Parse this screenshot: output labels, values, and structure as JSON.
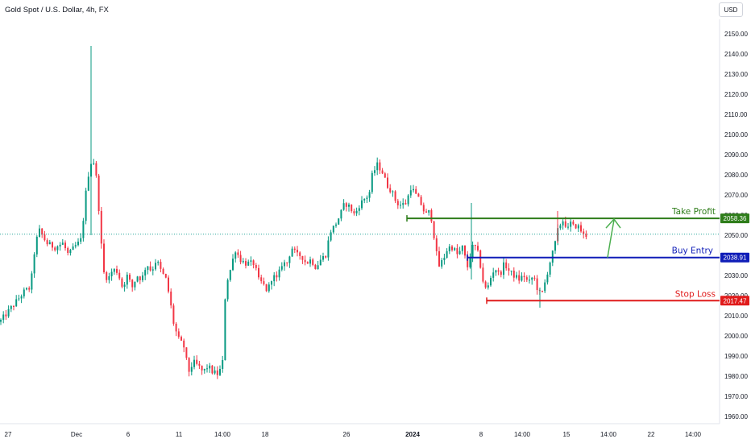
{
  "header": {
    "title": "Gold Spot / U.S. Dollar, 4h, FX",
    "currency": "USD"
  },
  "colors": {
    "up": "#089981",
    "down": "#f23645",
    "take_profit": "#2e7d1a",
    "buy_entry": "#0f1db8",
    "stop_loss": "#e01b1b",
    "arrow": "#4caf50",
    "current_price_line": "#26a69a"
  },
  "chart_data": {
    "type": "candlestick",
    "title": "Gold Spot / U.S. Dollar, 4h, FX",
    "y_ticks": [
      2150,
      2140,
      2130,
      2120,
      2110,
      2100,
      2090,
      2080,
      2070,
      2060,
      2050,
      2040,
      2030,
      2020,
      2010,
      2000,
      1990,
      1980,
      1970,
      1960
    ],
    "y_tick_labels": [
      "2150.00",
      "2140.00",
      "2130.00",
      "2120.00",
      "2110.00",
      "2100.00",
      "2090.00",
      "2080.00",
      "2070.00",
      "2060.00",
      "2050.00",
      "2040.00",
      "2030.00",
      "2020.00",
      "2010.00",
      "2000.00",
      "1990.00",
      "1980.00",
      "1970.00",
      "1960.00"
    ],
    "ylim": [
      1957,
      2155
    ],
    "x_labels": [
      "27",
      "Dec",
      "6",
      "11",
      "14:00",
      "18",
      "26",
      "2024",
      "8",
      "14:00",
      "15",
      "14:00",
      "22",
      "14:00"
    ],
    "price_path": [
      [
        0,
        2007
      ],
      [
        10,
        2012
      ],
      [
        20,
        2017
      ],
      [
        30,
        2022
      ],
      [
        38,
        2024
      ],
      [
        42,
        2040
      ],
      [
        48,
        2053
      ],
      [
        58,
        2046
      ],
      [
        68,
        2044
      ],
      [
        78,
        2046
      ],
      [
        85,
        2040
      ],
      [
        92,
        2044
      ],
      [
        100,
        2047
      ],
      [
        104,
        2060
      ],
      [
        108,
        2077
      ],
      [
        114,
        2088
      ],
      [
        118,
        2085
      ],
      [
        122,
        2067
      ],
      [
        128,
        2032
      ],
      [
        134,
        2028
      ],
      [
        140,
        2033
      ],
      [
        146,
        2032
      ],
      [
        152,
        2024
      ],
      [
        158,
        2030
      ],
      [
        164,
        2024
      ],
      [
        170,
        2030
      ],
      [
        176,
        2028
      ],
      [
        182,
        2036
      ],
      [
        188,
        2032
      ],
      [
        194,
        2038
      ],
      [
        200,
        2032
      ],
      [
        206,
        2028
      ],
      [
        210,
        2020
      ],
      [
        216,
        2005
      ],
      [
        222,
        1998
      ],
      [
        228,
        1995
      ],
      [
        234,
        1982
      ],
      [
        240,
        1987
      ],
      [
        246,
        1985
      ],
      [
        252,
        1982
      ],
      [
        258,
        1985
      ],
      [
        264,
        1982
      ],
      [
        270,
        1981
      ],
      [
        276,
        1985
      ],
      [
        280,
        2025
      ],
      [
        286,
        2033
      ],
      [
        292,
        2043
      ],
      [
        298,
        2038
      ],
      [
        304,
        2036
      ],
      [
        310,
        2036
      ],
      [
        316,
        2036
      ],
      [
        320,
        2028
      ],
      [
        326,
        2026
      ],
      [
        332,
        2022
      ],
      [
        338,
        2030
      ],
      [
        344,
        2028
      ],
      [
        350,
        2036
      ],
      [
        356,
        2036
      ],
      [
        362,
        2044
      ],
      [
        368,
        2040
      ],
      [
        374,
        2040
      ],
      [
        380,
        2036
      ],
      [
        386,
        2038
      ],
      [
        392,
        2034
      ],
      [
        398,
        2038
      ],
      [
        404,
        2040
      ],
      [
        410,
        2052
      ],
      [
        416,
        2055
      ],
      [
        422,
        2060
      ],
      [
        428,
        2066
      ],
      [
        434,
        2064
      ],
      [
        440,
        2060
      ],
      [
        446,
        2065
      ],
      [
        452,
        2068
      ],
      [
        458,
        2070
      ],
      [
        462,
        2080
      ],
      [
        468,
        2085
      ],
      [
        474,
        2082
      ],
      [
        480,
        2075
      ],
      [
        486,
        2072
      ],
      [
        492,
        2066
      ],
      [
        498,
        2065
      ],
      [
        504,
        2066
      ],
      [
        510,
        2074
      ],
      [
        516,
        2070
      ],
      [
        522,
        2066
      ],
      [
        528,
        2060
      ],
      [
        534,
        2062
      ],
      [
        540,
        2046
      ],
      [
        544,
        2034
      ],
      [
        550,
        2038
      ],
      [
        556,
        2044
      ],
      [
        562,
        2044
      ],
      [
        568,
        2040
      ],
      [
        574,
        2044
      ],
      [
        580,
        2034
      ],
      [
        586,
        2044
      ],
      [
        590,
        2044
      ],
      [
        594,
        2040
      ],
      [
        600,
        2026
      ],
      [
        604,
        2022
      ],
      [
        608,
        2028
      ],
      [
        614,
        2034
      ],
      [
        620,
        2030
      ],
      [
        626,
        2036
      ],
      [
        632,
        2032
      ],
      [
        638,
        2030
      ],
      [
        644,
        2028
      ],
      [
        650,
        2030
      ],
      [
        656,
        2026
      ],
      [
        662,
        2030
      ],
      [
        668,
        2022
      ],
      [
        672,
        2020
      ],
      [
        676,
        2026
      ],
      [
        682,
        2036
      ],
      [
        688,
        2044
      ],
      [
        692,
        2052
      ],
      [
        696,
        2056
      ],
      [
        700,
        2058
      ],
      [
        704,
        2052
      ],
      [
        708,
        2056
      ],
      [
        712,
        2054
      ],
      [
        716,
        2055
      ],
      [
        720,
        2053
      ],
      [
        724,
        2050
      ],
      [
        728,
        2050
      ]
    ],
    "current_price": 2050.5,
    "annotations": [
      {
        "label": "Take Profit",
        "price": 2058.36,
        "badge": "2058.36",
        "line_from": "Dec 29",
        "color": "take_profit"
      },
      {
        "label": "Buy Entry",
        "price": 2038.91,
        "badge": "2038.91",
        "line_from": "Jan 5",
        "color": "buy_entry"
      },
      {
        "label": "Stop Loss",
        "price": 2017.47,
        "badge": "2017.47",
        "line_from": "Jan 8",
        "color": "stop_loss"
      }
    ],
    "target_arrow": {
      "from_price": 2038.91,
      "to_price": 2058.36
    },
    "grid": false
  }
}
